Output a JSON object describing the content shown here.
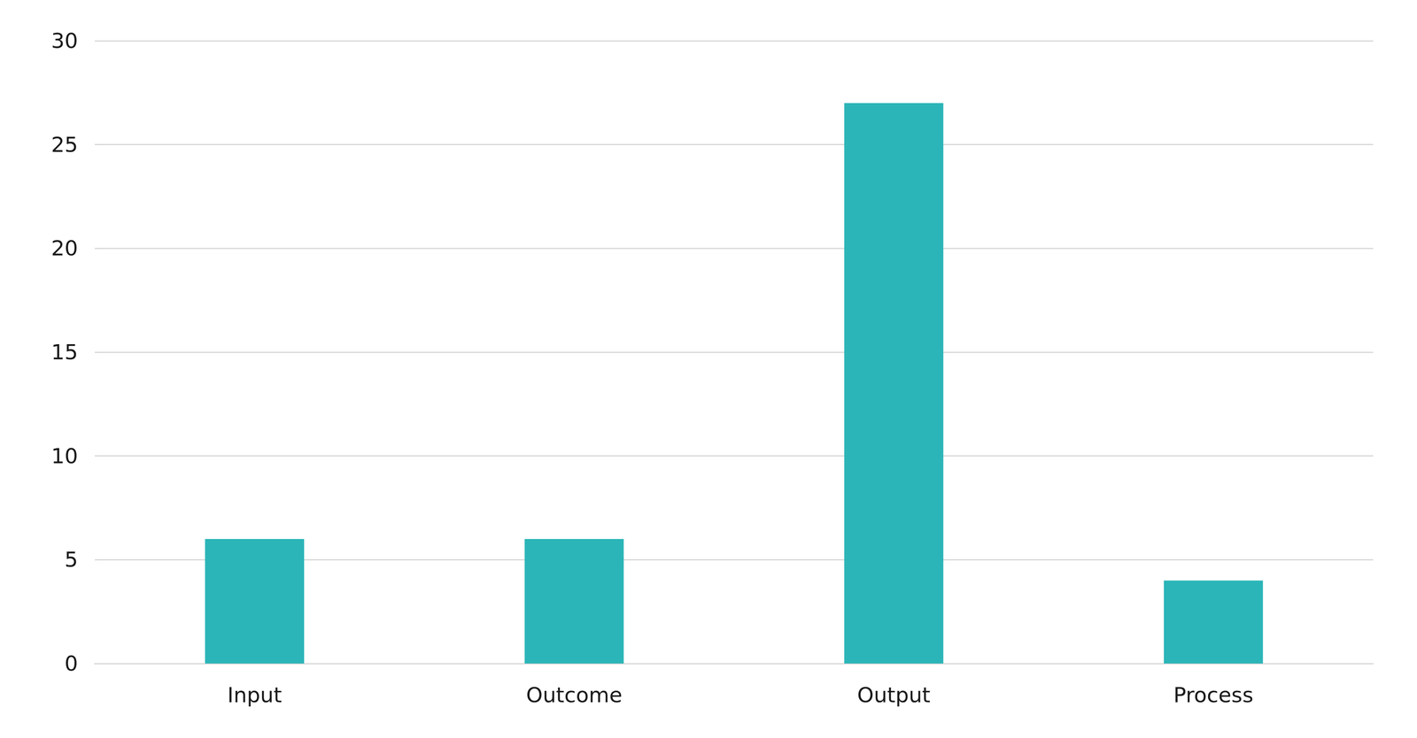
{
  "chart_data": {
    "type": "bar",
    "categories": [
      "Input",
      "Outcome",
      "Output",
      "Process"
    ],
    "values": [
      6,
      6,
      27,
      4
    ],
    "color": "#2cb5b8",
    "ylim": [
      0,
      30
    ],
    "yticks": [
      0,
      5,
      10,
      15,
      20,
      25,
      30
    ],
    "grid": true
  }
}
